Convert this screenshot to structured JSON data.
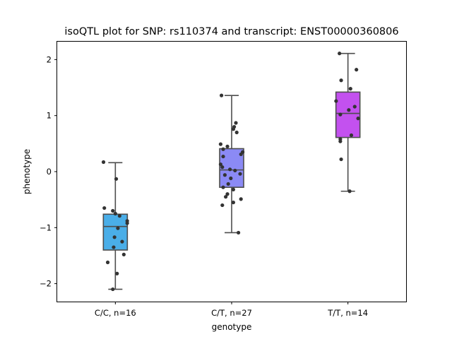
{
  "chart_data": {
    "type": "box",
    "title": "isoQTL plot for SNP: rs110374 and transcript: ENST00000360806",
    "xlabel": "genotype",
    "ylabel": "phenotype",
    "categories": [
      "C/C, n=16",
      "C/T, n=27",
      "T/T, n=14"
    ],
    "ylim": [
      -2.32,
      2.32
    ],
    "yticks": [
      -2,
      -1,
      0,
      1,
      2
    ],
    "ytick_labels": [
      "−2",
      "−1",
      "0",
      "1",
      "2"
    ],
    "grid": false,
    "boxes": [
      {
        "color": "#4aaee8",
        "q1": -1.4,
        "median": -0.98,
        "q3": -0.76,
        "whisker_low": -2.1,
        "whisker_high": 0.16
      },
      {
        "color": "#8b8af5",
        "q1": -0.28,
        "median": 0.03,
        "q3": 0.41,
        "whisker_low": -1.09,
        "whisker_high": 1.36
      },
      {
        "color": "#c351ef",
        "q1": 0.61,
        "median": 1.04,
        "q3": 1.42,
        "whisker_low": -0.35,
        "whisker_high": 2.11
      }
    ],
    "points": [
      [
        {
          "x": -0.14,
          "y": 0.17
        },
        {
          "x": 0.01,
          "y": -0.13
        },
        {
          "x": -0.13,
          "y": -0.65
        },
        {
          "x": -0.03,
          "y": -0.7
        },
        {
          "x": 0.0,
          "y": -0.75
        },
        {
          "x": 0.14,
          "y": -0.88
        },
        {
          "x": 0.14,
          "y": -0.92
        },
        {
          "x": 0.03,
          "y": -1.01
        },
        {
          "x": -0.01,
          "y": -1.17
        },
        {
          "x": 0.08,
          "y": -1.25
        },
        {
          "x": -0.02,
          "y": -1.35
        },
        {
          "x": 0.1,
          "y": -1.48
        },
        {
          "x": -0.09,
          "y": -1.62
        },
        {
          "x": 0.02,
          "y": -1.82
        },
        {
          "x": -0.03,
          "y": -2.1
        },
        {
          "x": 0.05,
          "y": -0.79
        }
      ],
      [
        {
          "x": -0.12,
          "y": 1.36
        },
        {
          "x": 0.05,
          "y": 0.87
        },
        {
          "x": 0.03,
          "y": 0.8
        },
        {
          "x": 0.02,
          "y": 0.76
        },
        {
          "x": 0.06,
          "y": 0.7
        },
        {
          "x": -0.13,
          "y": 0.49
        },
        {
          "x": -0.05,
          "y": 0.45
        },
        {
          "x": -0.1,
          "y": 0.4
        },
        {
          "x": 0.13,
          "y": 0.35
        },
        {
          "x": 0.11,
          "y": 0.31
        },
        {
          "x": -0.1,
          "y": 0.27
        },
        {
          "x": -0.13,
          "y": 0.13
        },
        {
          "x": -0.11,
          "y": 0.08
        },
        {
          "x": -0.02,
          "y": 0.04
        },
        {
          "x": 0.04,
          "y": 0.02
        },
        {
          "x": 0.1,
          "y": -0.04
        },
        {
          "x": -0.08,
          "y": -0.06
        },
        {
          "x": -0.01,
          "y": -0.12
        },
        {
          "x": -0.04,
          "y": -0.22
        },
        {
          "x": -0.1,
          "y": -0.28
        },
        {
          "x": 0.02,
          "y": -0.32
        },
        {
          "x": -0.05,
          "y": -0.4
        },
        {
          "x": -0.07,
          "y": -0.45
        },
        {
          "x": 0.11,
          "y": -0.49
        },
        {
          "x": 0.02,
          "y": -0.55
        },
        {
          "x": -0.11,
          "y": -0.6
        },
        {
          "x": 0.08,
          "y": -1.09
        }
      ],
      [
        {
          "x": -0.1,
          "y": 2.11
        },
        {
          "x": 0.1,
          "y": 1.82
        },
        {
          "x": -0.08,
          "y": 1.63
        },
        {
          "x": 0.03,
          "y": 1.48
        },
        {
          "x": -0.14,
          "y": 1.26
        },
        {
          "x": 0.08,
          "y": 1.16
        },
        {
          "x": 0.01,
          "y": 1.1
        },
        {
          "x": -0.09,
          "y": 1.02
        },
        {
          "x": 0.12,
          "y": 0.95
        },
        {
          "x": 0.04,
          "y": 0.65
        },
        {
          "x": -0.09,
          "y": 0.58
        },
        {
          "x": -0.09,
          "y": 0.54
        },
        {
          "x": -0.08,
          "y": 0.22
        },
        {
          "x": 0.02,
          "y": -0.35
        }
      ]
    ]
  }
}
